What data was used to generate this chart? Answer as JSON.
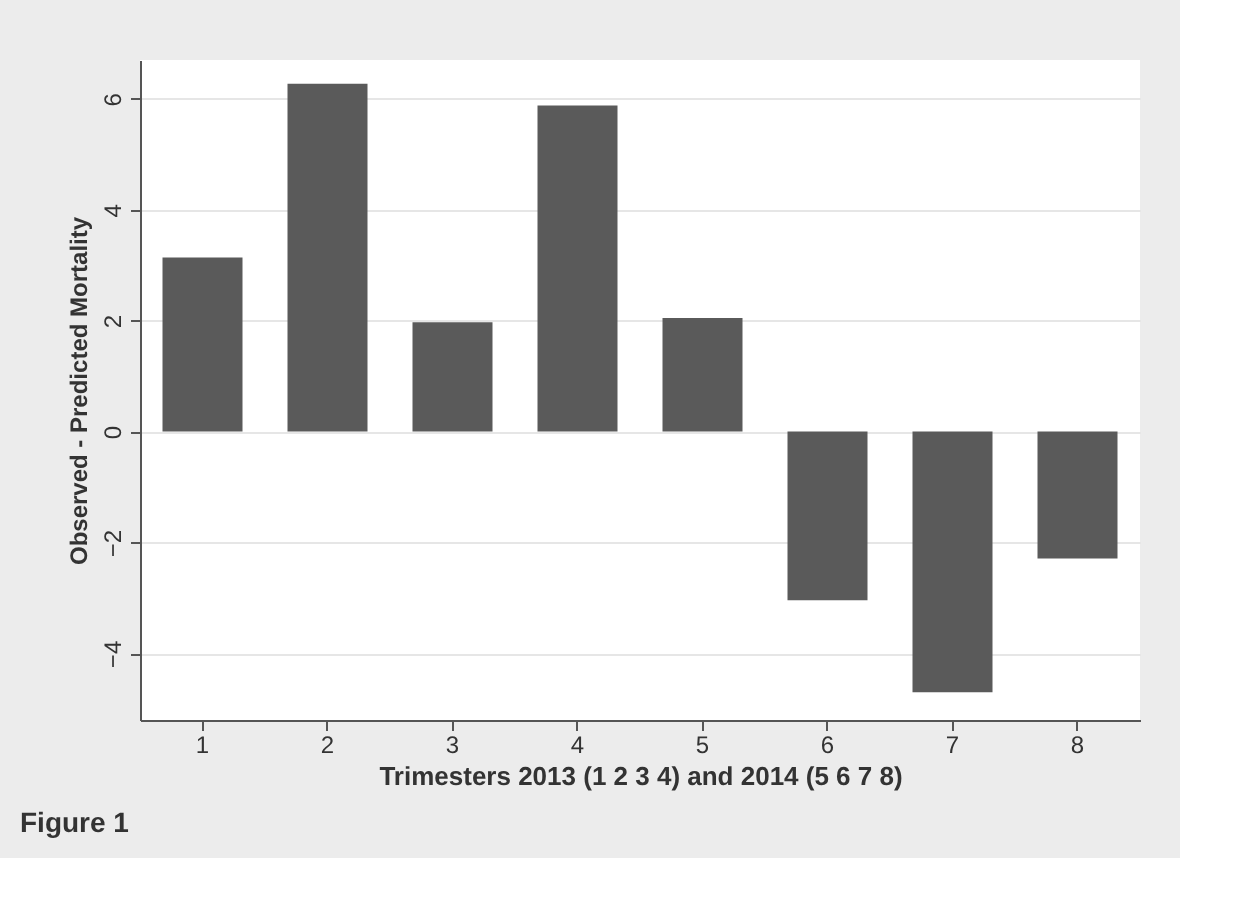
{
  "chart_data": {
    "type": "bar",
    "xlabel": "Trimesters 2013 (1 2 3 4) and 2014 (5 6 7 8)",
    "ylabel": "Observed - Predicted Mortality",
    "categories": [
      "1",
      "2",
      "3",
      "4",
      "5",
      "6",
      "7",
      "8"
    ],
    "values": [
      3.14,
      6.27,
      1.97,
      5.88,
      2.05,
      -3.04,
      -4.7,
      -2.29
    ],
    "color": "#5a5a5a",
    "ylim": [
      -5.2,
      6.7
    ],
    "yticks": [
      -4,
      -2,
      0,
      2,
      4,
      6
    ],
    "grid": "y",
    "annotations": [
      "Figure 1"
    ]
  }
}
